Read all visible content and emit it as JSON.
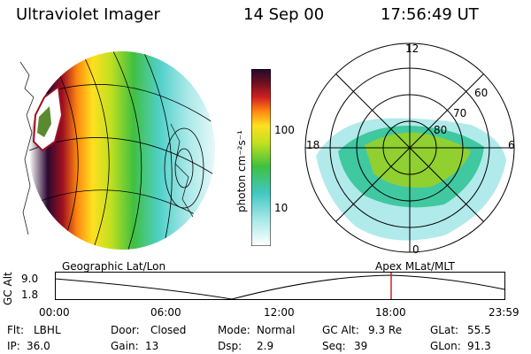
{
  "header": {
    "instrument": "Ultraviolet Imager",
    "date": "14 Sep 00",
    "time": "17:56:49 UT"
  },
  "colorbar": {
    "label": "photon cm⁻²s⁻¹",
    "ticks": [
      "100",
      "10"
    ]
  },
  "polar_plot": {
    "mlt_labels": [
      "12",
      "18",
      "6",
      "0"
    ],
    "lat_labels": [
      "60",
      "70",
      "80"
    ]
  },
  "panel_labels": {
    "left": "Geographic Lat/Lon",
    "right": "Apex MLat/MLT"
  },
  "altitude_plot": {
    "ylabel": "GC Alt",
    "yticks": [
      "9.0",
      "1.8"
    ],
    "xticks": [
      "00:00",
      "06:00",
      "12:00",
      "18:00",
      "23:59"
    ]
  },
  "status": {
    "row1": [
      {
        "label": "Flt:",
        "value": "LBHL"
      },
      {
        "label": "Door:",
        "value": "Closed"
      },
      {
        "label": "Mode:",
        "value": "Normal"
      },
      {
        "label": "GC Alt:",
        "value": "9.3 Re"
      },
      {
        "label": "GLat:",
        "value": "55.5"
      }
    ],
    "row2": [
      {
        "label": "IP:",
        "value": "36.0"
      },
      {
        "label": "Gain:",
        "value": "13"
      },
      {
        "label": "Dsp:",
        "value": "2.9"
      },
      {
        "label": "Seq:",
        "value": "39"
      },
      {
        "label": "GLon:",
        "value": "91.3"
      }
    ]
  }
}
